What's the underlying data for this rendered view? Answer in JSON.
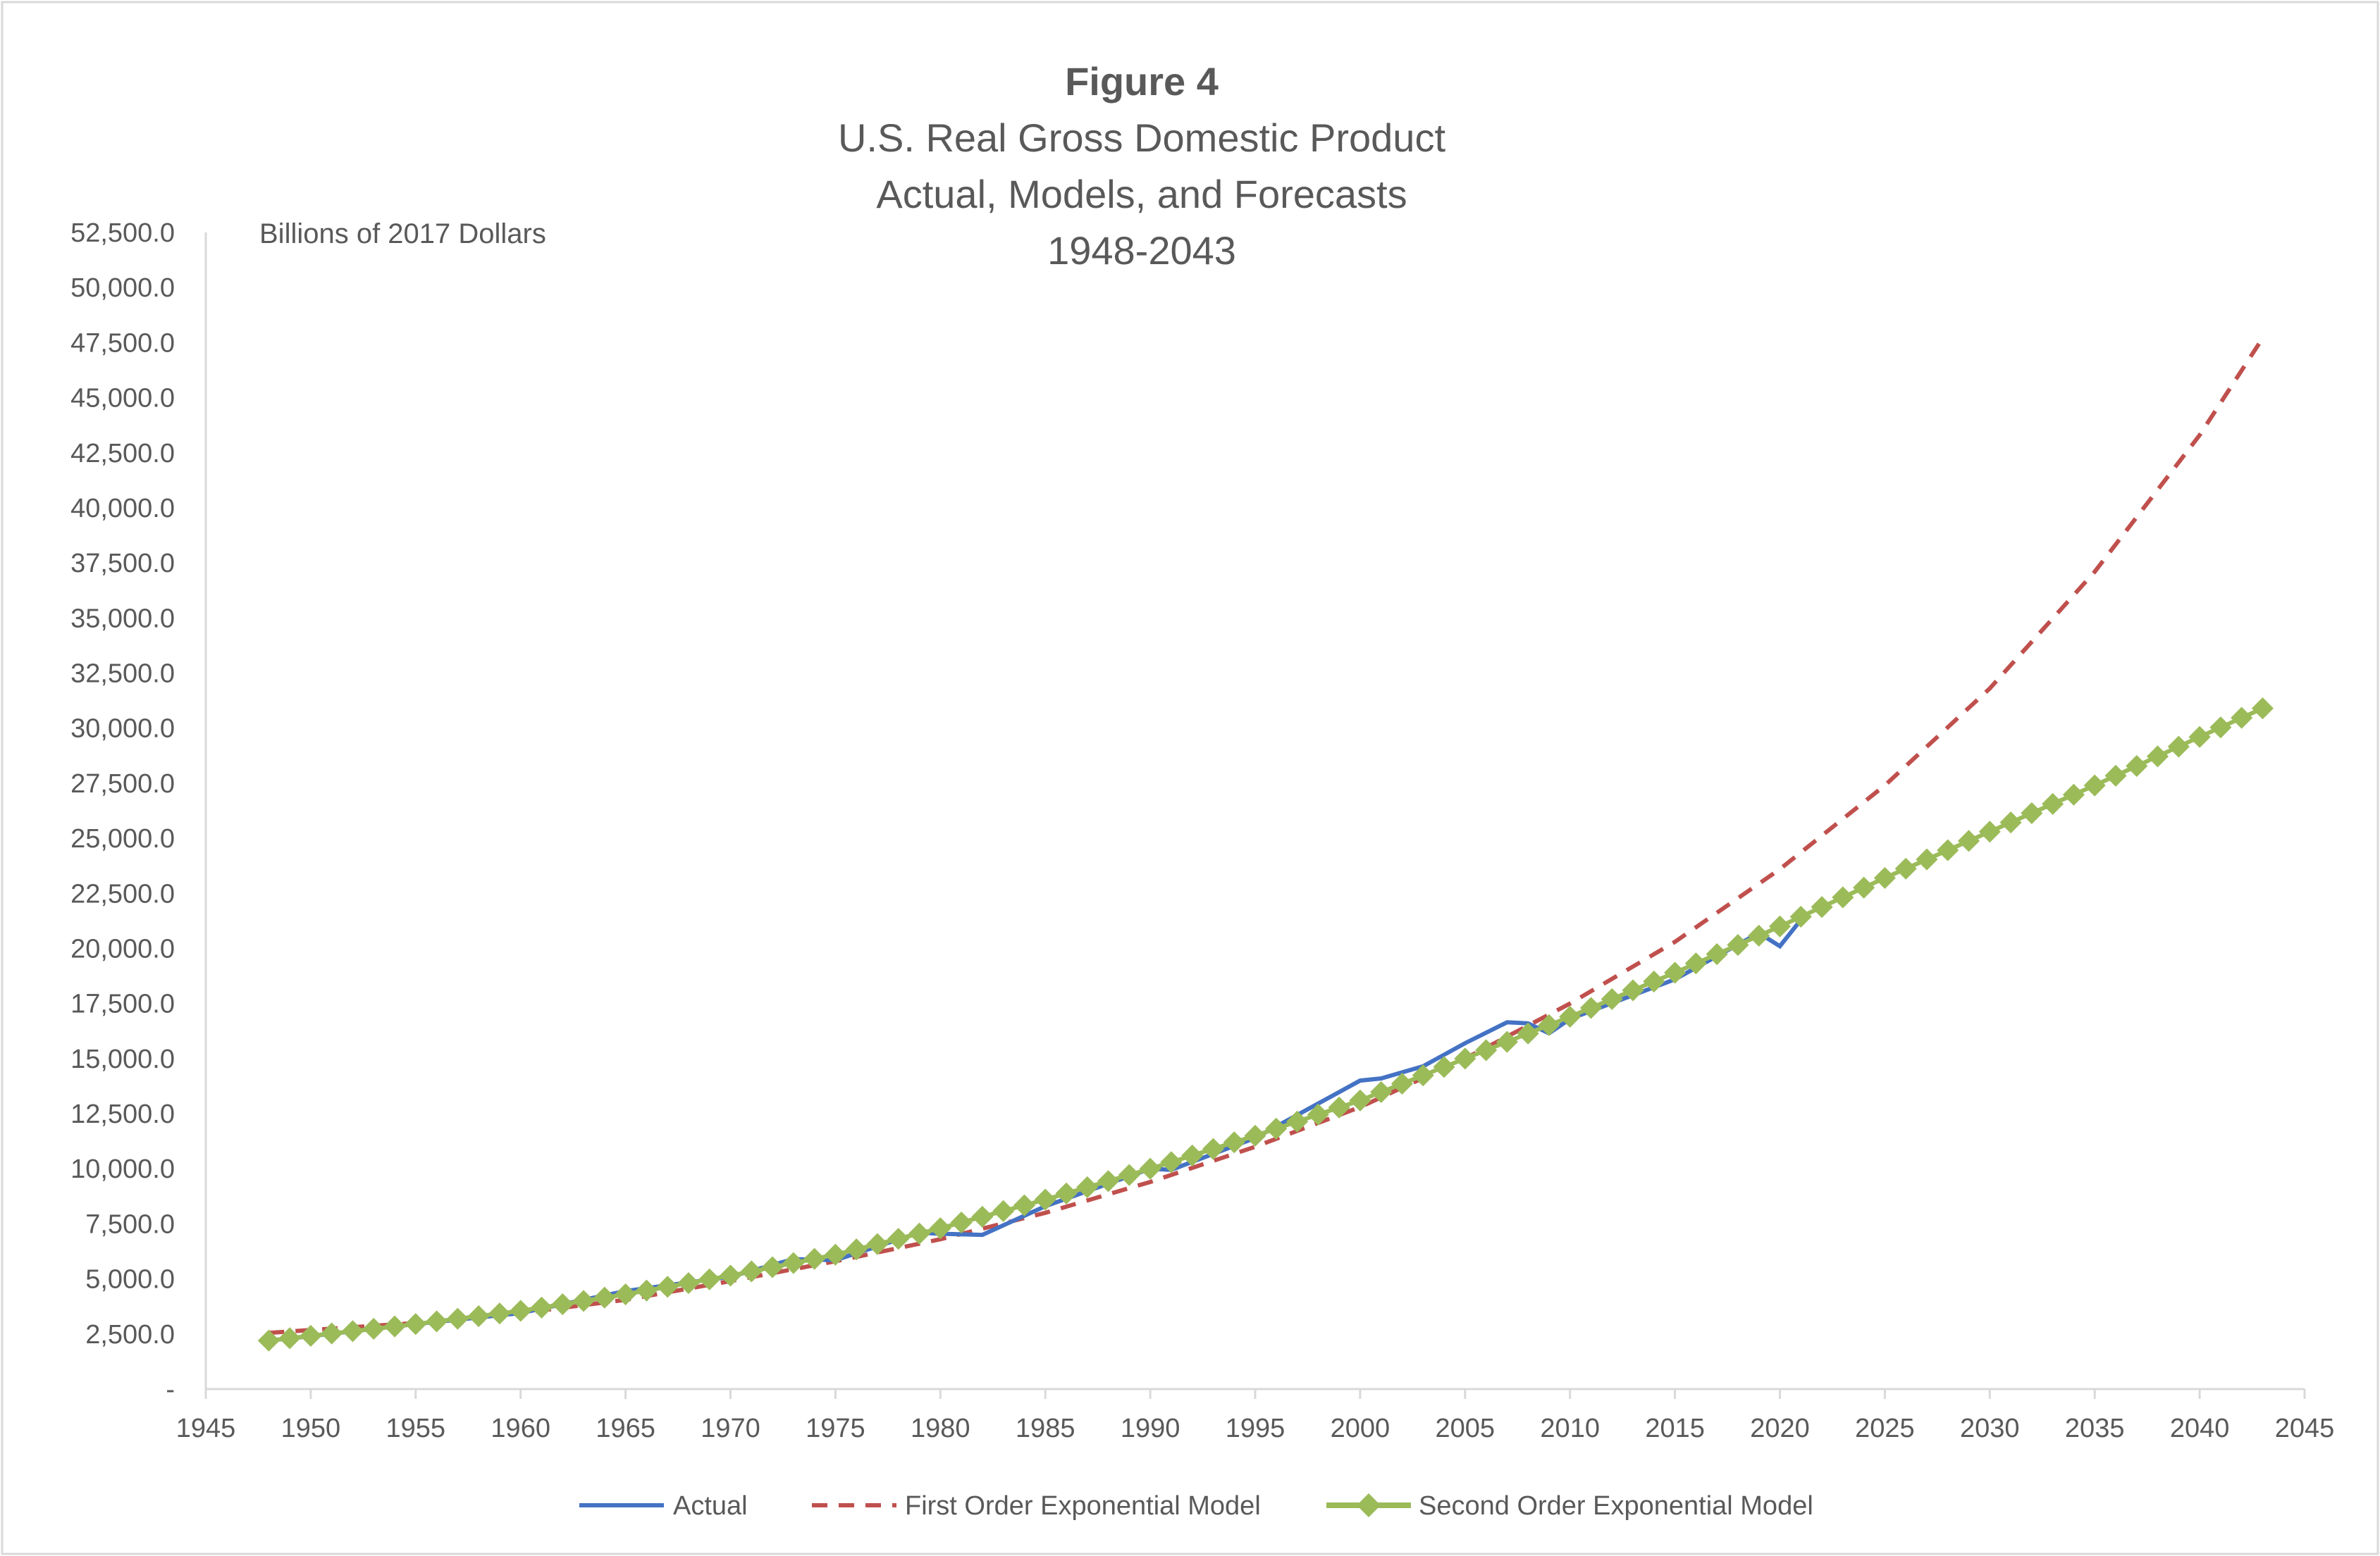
{
  "chart_data": {
    "type": "line",
    "title": "Figure 4",
    "subtitle": [
      "U.S. Real Gross Domestic Product",
      "Actual, Models, and Forecasts",
      "1948-2043"
    ],
    "ylabel": "Billions of 2017 Dollars",
    "xlabel": "",
    "xlim": [
      1945,
      2045
    ],
    "ylim": [
      0,
      52500
    ],
    "x_ticks": [
      "1945",
      "1950",
      "1955",
      "1960",
      "1965",
      "1970",
      "1975",
      "1980",
      "1985",
      "1990",
      "1995",
      "2000",
      "2005",
      "2010",
      "2015",
      "2020",
      "2025",
      "2030",
      "2035",
      "2040",
      "2045"
    ],
    "y_ticks": [
      "-",
      "2,500.0",
      "5,000.0",
      "7,500.0",
      "10,000.0",
      "12,500.0",
      "15,000.0",
      "17,500.0",
      "20,000.0",
      "22,500.0",
      "25,000.0",
      "27,500.0",
      "30,000.0",
      "32,500.0",
      "35,000.0",
      "37,500.0",
      "40,000.0",
      "42,500.0",
      "45,000.0",
      "47,500.0",
      "50,000.0",
      "52,500.0"
    ],
    "grid": false,
    "legend_position": "bottom",
    "colors": {
      "actual": "#4472C4",
      "first_order": "#C0504D",
      "second_order": "#9BBB59",
      "axis": "#D9D9D9",
      "text": "#595959"
    },
    "series": [
      {
        "name": "Actual",
        "style": "solid",
        "x": [
          1948,
          1950,
          1955,
          1960,
          1965,
          1970,
          1973,
          1975,
          1979,
          1980,
          1982,
          1985,
          1990,
          1991,
          1995,
          2000,
          2001,
          2003,
          2005,
          2007,
          2008,
          2009,
          2010,
          2015,
          2019,
          2020,
          2021
        ],
        "values": [
          2200,
          2400,
          2950,
          3450,
          4450,
          5100,
          5900,
          5850,
          7100,
          7050,
          7000,
          8300,
          10000,
          9950,
          11400,
          14000,
          14100,
          14650,
          15700,
          16650,
          16600,
          16150,
          16800,
          18600,
          20700,
          20100,
          21300
        ]
      },
      {
        "name": "First Order Exponential Model",
        "style": "dashed",
        "x": [
          1948,
          1955,
          1960,
          1965,
          1970,
          1975,
          1980,
          1985,
          1990,
          1995,
          2000,
          2005,
          2010,
          2015,
          2020,
          2025,
          2030,
          2035,
          2040,
          2043
        ],
        "values": [
          2550,
          3000,
          3450,
          4050,
          4900,
          5800,
          6800,
          8000,
          9400,
          11000,
          12800,
          15000,
          17500,
          20300,
          23600,
          27400,
          31800,
          37100,
          43300,
          47700
        ]
      },
      {
        "name": "Second Order Exponential Model",
        "style": "solid-diamond",
        "x": [
          1948,
          1955,
          1960,
          1965,
          1970,
          1975,
          1980,
          1985,
          1990,
          1995,
          2000,
          2005,
          2010,
          2015,
          2020,
          2025,
          2030,
          2035,
          2040,
          2043
        ],
        "values": [
          2200,
          2950,
          3550,
          4300,
          5150,
          6100,
          7300,
          8600,
          10000,
          11500,
          13100,
          15000,
          16900,
          18900,
          21000,
          23200,
          25300,
          27400,
          29600,
          30900
        ]
      }
    ]
  }
}
